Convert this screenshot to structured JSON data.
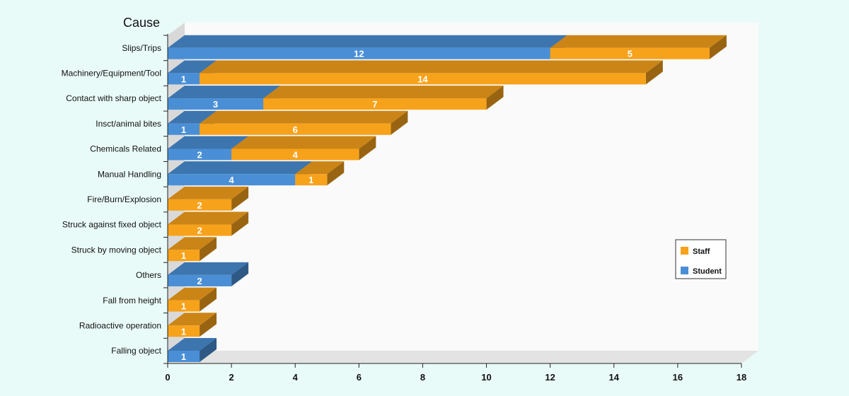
{
  "chart_data": {
    "type": "bar",
    "orientation": "horizontal",
    "stacked": true,
    "three_d": true,
    "ylabel": "Cause",
    "xlim": [
      0,
      18
    ],
    "x_ticks": [
      0,
      2,
      4,
      6,
      8,
      10,
      12,
      14,
      16,
      18
    ],
    "grid": false,
    "legend_position": "right",
    "categories": [
      "Slips/Trips",
      "Machinery/Equipment/Tool",
      "Contact with sharp object",
      "Insct/animal bites",
      "Chemicals Related",
      "Manual Handling",
      "Fire/Burn/Explosion",
      "Struck against fixed object",
      "Struck by moving object",
      "Others",
      "Fall from height",
      "Radioactive operation",
      "Falling object"
    ],
    "series": [
      {
        "name": "Student",
        "color": "#4a8fd6",
        "values": [
          12,
          1,
          3,
          1,
          2,
          4,
          0,
          0,
          0,
          2,
          0,
          0,
          1
        ]
      },
      {
        "name": "Staff",
        "color": "#f7a21b",
        "values": [
          5,
          14,
          7,
          6,
          4,
          1,
          2,
          2,
          1,
          0,
          1,
          1,
          0
        ]
      }
    ],
    "legend_order": [
      "Staff",
      "Student"
    ]
  }
}
